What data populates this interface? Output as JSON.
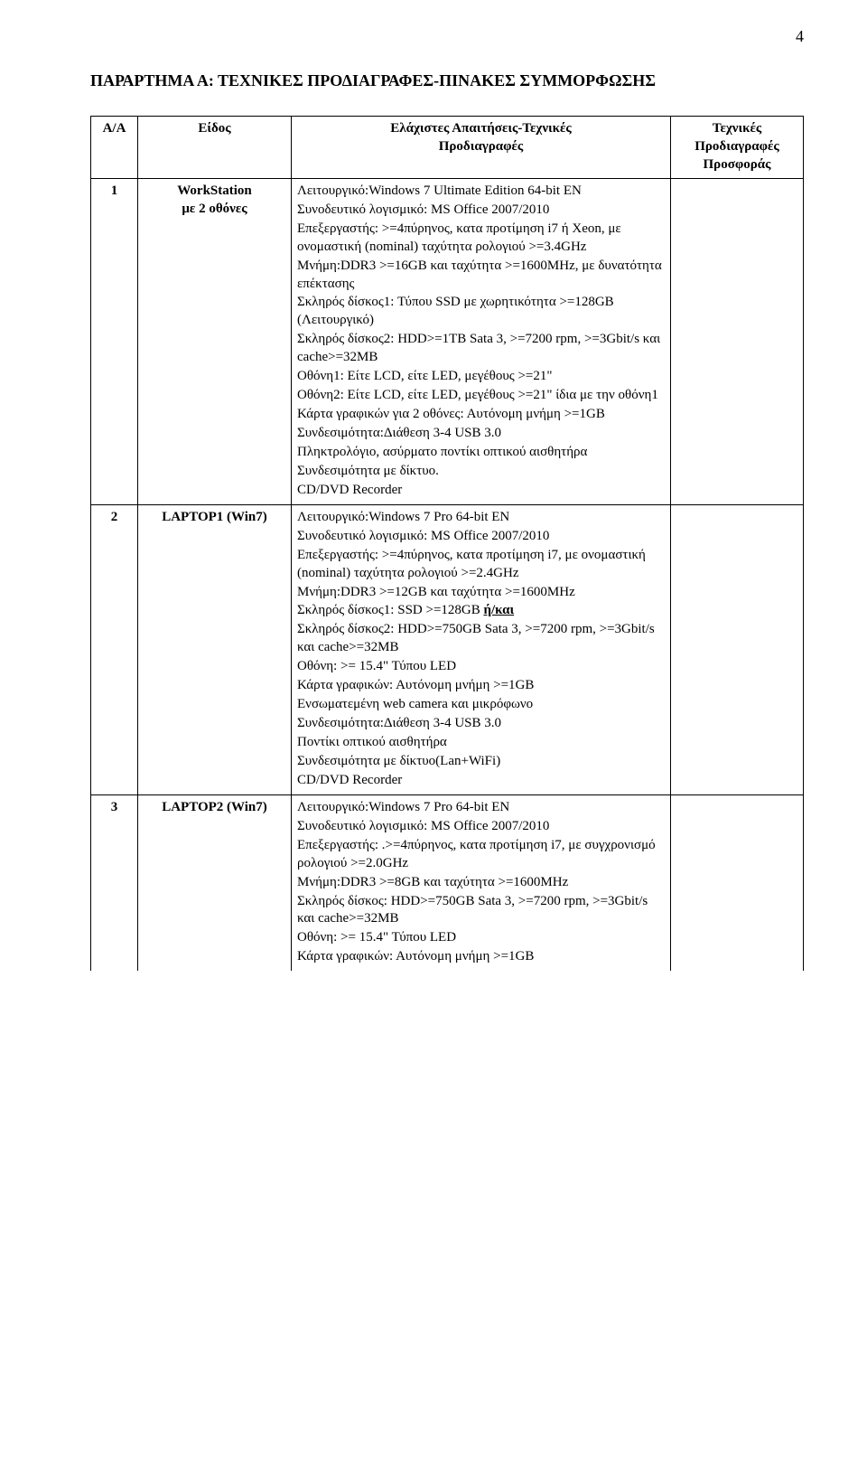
{
  "page_number": "4",
  "section_title": "ΠΑΡΑΡΤΗΜΑ Α: ΤΕΧΝΙΚΕΣ ΠΡΟΔΙΑΓΡΑΦΕΣ-ΠΙΝΑΚΕΣ ΣΥΜΜΟΡΦΩΣΗΣ",
  "headers": {
    "aa": "A/A",
    "eidos": "Είδος",
    "req_line1": "Ελάχιστες Απαιτήσεις-Τεχνικές",
    "req_line2": "Προδιαγραφές",
    "tech_line1": "Τεχνικές",
    "tech_line2": "Προδιαγραφές",
    "tech_line3": "Προσφοράς"
  },
  "rows": [
    {
      "aa": "1",
      "eidos_line1": "WorkStation",
      "eidos_line2": "με 2 οθόνες",
      "spec": [
        "Λειτουργικό:Windows 7 Ultimate Edition 64-bit EN",
        "Συνοδευτικό λογισμικό: MS Office 2007/2010",
        "Επεξεργαστής: >=4πύρηνος, κατα προτίμηση i7 ή Xeon, με ονομαστική (nominal) ταχύτητα ρολογιού >=3.4GHz",
        "Μνήμη:DDR3 >=16GB και ταχύτητα >=1600MHz, με δυνατότητα επέκτασης",
        "Σκληρός δίσκος1: Τύπου SSD με χωρητικότητα >=128GB (Λειτουργικό)",
        "Σκληρός δίσκος2: HDD>=1TB Sata 3, >=7200 rpm, >=3Gbit/s και cache>=32MB",
        "Οθόνη1: Είτε LCD, είτε LED, μεγέθους >=21\"",
        "Οθόνη2: Είτε LCD, είτε LED, μεγέθους >=21\" ίδια με την οθόνη1",
        "Κάρτα γραφικών για 2 οθόνες: Αυτόνομη μνήμη >=1GB",
        "Συνδεσιμότητα:Διάθεση 3-4 USB 3.0",
        "Πληκτρολόγιο, ασύρματο ποντίκι οπτικού αισθητήρα",
        "Συνδεσιμότητα με δίκτυο.",
        "CD/DVD Recorder"
      ]
    },
    {
      "aa": "2",
      "eidos": "LAPTOP1 (Win7)",
      "spec_pre": [
        "Λειτουργικό:Windows 7 Pro 64-bit EN",
        "Συνοδευτικό λογισμικό: MS Office 2007/2010",
        "Επεξεργαστής: >=4πύρηνος, κατα προτίμηση i7, με ονομαστική (nominal) ταχύτητα ρολογιού >=2.4GHz",
        "Μνήμη:DDR3 >=12GB και ταχύτητα >=1600MHz"
      ],
      "spec_ssd_prefix": "Σκληρός δίσκος1: SSD >=128GB ",
      "spec_ssd_underlined": "ή/και",
      "spec_post": [
        "Σκληρός δίσκος2: HDD>=750GB Sata 3, >=7200 rpm, >=3Gbit/s και cache>=32MB",
        "Οθόνη: >= 15.4\" Τύπου LED",
        "Κάρτα γραφικών: Αυτόνομη μνήμη >=1GB",
        "Ενσωματεμένη web camera και μικρόφωνο",
        "Συνδεσιμότητα:Διάθεση 3-4 USB 3.0",
        "Ποντίκι οπτικού αισθητήρα",
        "Συνδεσιμότητα με δίκτυο(Lan+WiFi)",
        "CD/DVD Recorder"
      ]
    },
    {
      "aa": "3",
      "eidos": "LAPTOP2 (Win7)",
      "spec": [
        "Λειτουργικό:Windows 7 Pro 64-bit EN",
        "Συνοδευτικό λογισμικό: MS Office 2007/2010",
        "Επεξεργαστής: .>=4πύρηνος, κατα προτίμηση i7, με συγχρονισμό ρολογιού >=2.0GHz",
        "Μνήμη:DDR3 >=8GB και ταχύτητα >=1600MHz",
        "Σκληρός δίσκος: HDD>=750GB Sata 3, >=7200 rpm, >=3Gbit/s και cache>=32MB",
        "Οθόνη: >= 15.4\" Τύπου LED",
        "Κάρτα γραφικών: Αυτόνομη μνήμη >=1GB"
      ]
    }
  ]
}
